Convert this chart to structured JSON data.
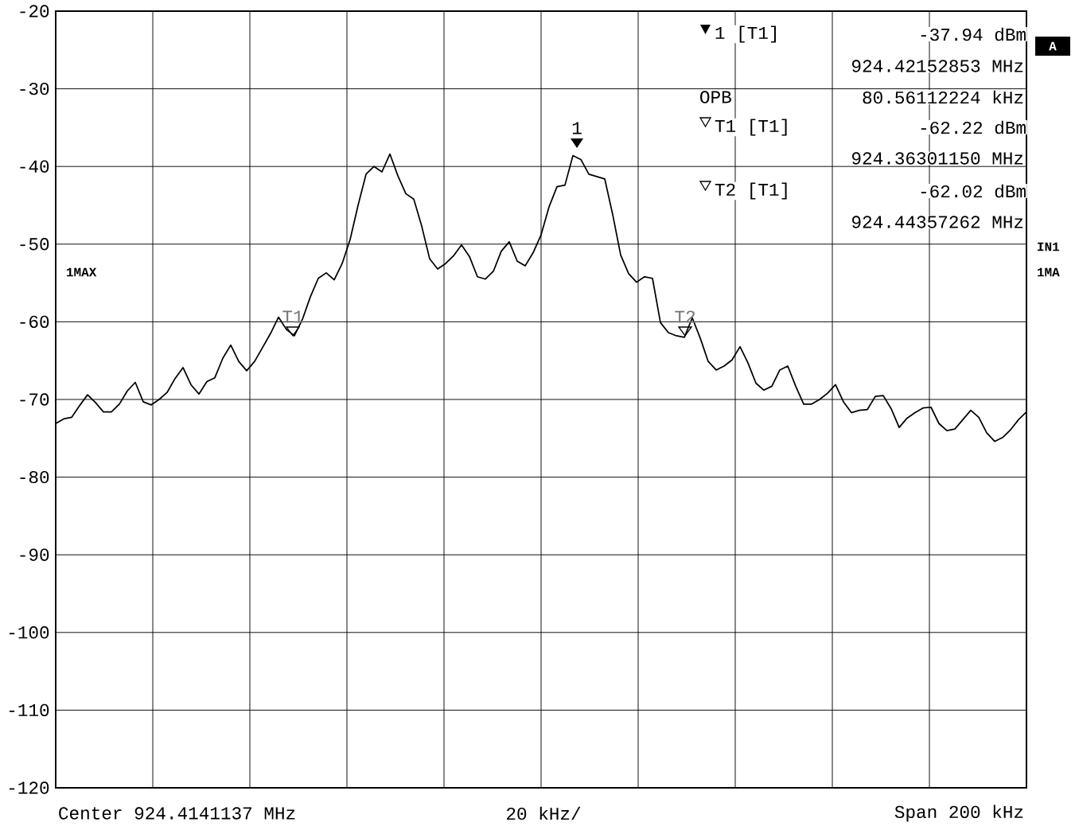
{
  "chart_data": {
    "type": "line",
    "color": "#000000",
    "categories": [
      null,
      null,
      null,
      null,
      null,
      null,
      null,
      null,
      null,
      null,
      null,
      null,
      null,
      null,
      null,
      null,
      null,
      null,
      null,
      null,
      null,
      null,
      null,
      null,
      null,
      null,
      null,
      null,
      null,
      null,
      null,
      null,
      null,
      null,
      null,
      null,
      null,
      null,
      null,
      null,
      null,
      null,
      null,
      null,
      null,
      null,
      null,
      null,
      null,
      null,
      null,
      null,
      null,
      null,
      null,
      null,
      null,
      null,
      null,
      null,
      null,
      null,
      null,
      null,
      null,
      null,
      null,
      null,
      null,
      null,
      null,
      null,
      null,
      null,
      null,
      null,
      null,
      null,
      null,
      null,
      null,
      null,
      null,
      null,
      null,
      null,
      null,
      null,
      null,
      null,
      null,
      null,
      null,
      null,
      null,
      null,
      null,
      null,
      null,
      null,
      null,
      null,
      null,
      null,
      null,
      null,
      null,
      null,
      null,
      null,
      null,
      null,
      null,
      null,
      null,
      null,
      null,
      null,
      null,
      null,
      null,
      null,
      null
    ],
    "values": [
      -73.1,
      -72.5,
      -72.3,
      -70.8,
      -69.4,
      -70.4,
      -71.6,
      -71.6,
      -70.6,
      -68.9,
      -67.8,
      -70.3,
      -70.7,
      -70.0,
      -69.1,
      -67.3,
      -65.9,
      -68.1,
      -69.3,
      -67.7,
      -67.2,
      -64.7,
      -63.0,
      -65.1,
      -66.3,
      -65.1,
      -63.3,
      -61.5,
      -59.4,
      -61.0,
      -61.8,
      -59.7,
      -56.8,
      -54.4,
      -53.7,
      -54.6,
      -52.5,
      -49.4,
      -45.0,
      -41.0,
      -40.0,
      -40.7,
      -38.4,
      -41.2,
      -43.5,
      -44.2,
      -47.7,
      -51.9,
      -53.2,
      -52.5,
      -51.5,
      -50.1,
      -51.6,
      -54.2,
      -54.5,
      -53.5,
      -50.9,
      -49.7,
      -52.2,
      -52.8,
      -51.1,
      -48.8,
      -45.2,
      -42.6,
      -42.4,
      -38.6,
      -39.1,
      -41.0,
      -41.3,
      -41.6,
      -46.2,
      -51.4,
      -53.8,
      -54.9,
      -54.2,
      -54.4,
      -60.1,
      -61.4,
      -61.8,
      -62.0,
      -59.5,
      -62.1,
      -65.1,
      -66.2,
      -65.7,
      -64.9,
      -63.2,
      -65.3,
      -67.9,
      -68.8,
      -68.3,
      -66.2,
      -65.7,
      -68.3,
      -70.6,
      -70.6,
      -70.0,
      -69.2,
      -68.1,
      -70.3,
      -71.7,
      -71.4,
      -71.3,
      -69.6,
      -69.5,
      -71.2,
      -73.6,
      -72.4,
      -71.7,
      -71.1,
      -71.0,
      -73.1,
      -74.0,
      -73.8,
      -72.6,
      -71.4,
      -72.3,
      -74.3,
      -75.4,
      -74.9,
      -73.9,
      -72.6,
      -71.6
    ],
    "ylim": [
      -120,
      -20
    ],
    "yticks": [
      {
        "value": -120,
        "label": "-120"
      },
      {
        "value": -110,
        "label": "-110"
      },
      {
        "value": -100,
        "label": "-100"
      },
      {
        "value": -90,
        "label": "-90"
      },
      {
        "value": -80,
        "label": "-80"
      },
      {
        "value": -70,
        "label": "-70"
      },
      {
        "value": -60,
        "label": "-60"
      },
      {
        "value": -50,
        "label": "-50"
      },
      {
        "value": -40,
        "label": "-40"
      },
      {
        "value": -30,
        "label": "-30"
      },
      {
        "value": -20,
        "label": "-20"
      }
    ],
    "tick_labels": "y",
    "grid": true,
    "annotations": [
      "1 [T1]",
      "-37.94 dBm",
      "924.42152853 MHz",
      "OPB",
      "80.56112224 kHz",
      "T1 [T1]",
      "-62.22 dBm",
      "924.36301150 MHz",
      "T2 [T1]",
      "-62.02 dBm",
      "924.44357262 MHz",
      "1MAX",
      "A",
      "IN1",
      "1MA",
      "Center 924.4141137 MHz",
      "20 kHz/",
      "Span 200 kHz",
      "1",
      "T1",
      "T2"
    ]
  }
}
